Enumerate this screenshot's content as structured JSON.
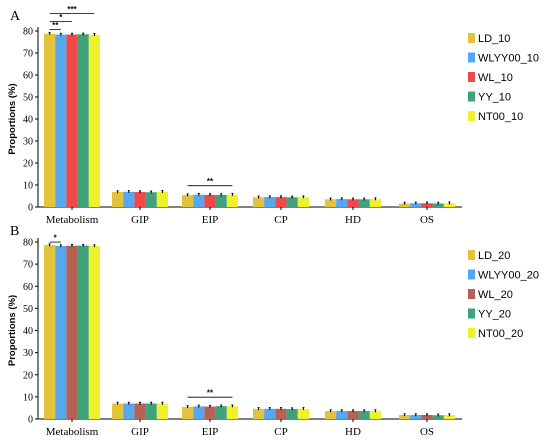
{
  "chart_data": [
    {
      "type": "bar",
      "panel": "A",
      "ylabel": "Proportions (%)",
      "ylim": [
        0,
        80
      ],
      "yticks": [
        0,
        10,
        20,
        30,
        40,
        50,
        60,
        70,
        80
      ],
      "categories": [
        "Metabolism",
        "GIP",
        "EIP",
        "CP",
        "HD",
        "OS"
      ],
      "legend_position": "right",
      "series": [
        {
          "name": "LD_10",
          "color": "#e3c23c",
          "values": [
            78.8,
            6.8,
            5.4,
            4.4,
            3.5,
            1.6
          ]
        },
        {
          "name": "WLYY00_10",
          "color": "#55a8f0",
          "values": [
            78.4,
            6.9,
            5.6,
            4.5,
            3.6,
            1.7
          ]
        },
        {
          "name": "WL_10",
          "color": "#f0474b",
          "values": [
            78.4,
            6.8,
            5.5,
            4.5,
            3.5,
            1.7
          ]
        },
        {
          "name": "YY_10",
          "color": "#3ea27c",
          "values": [
            78.5,
            6.7,
            5.5,
            4.4,
            3.5,
            1.6
          ]
        },
        {
          "name": "NT00_10",
          "color": "#eff22a",
          "values": [
            78.3,
            6.9,
            5.6,
            4.5,
            3.6,
            1.7
          ]
        }
      ],
      "significance": [
        {
          "label": "***",
          "category": "Metabolism",
          "from": 0,
          "to": 4
        },
        {
          "label": "*",
          "category": "Metabolism",
          "from": 0,
          "to": 2
        },
        {
          "label": "**",
          "category": "Metabolism",
          "from": 0,
          "to": 1
        },
        {
          "label": "**",
          "category": "EIP",
          "from": 0,
          "to": 4
        }
      ]
    },
    {
      "type": "bar",
      "panel": "B",
      "ylabel": "Proportions (%)",
      "ylim": [
        0,
        80
      ],
      "yticks": [
        0,
        10,
        20,
        30,
        40,
        50,
        60,
        70,
        80
      ],
      "categories": [
        "Metabolism",
        "GIP",
        "EIP",
        "CP",
        "HD",
        "OS"
      ],
      "legend_position": "right",
      "series": [
        {
          "name": "LD_20",
          "color": "#e3c23c",
          "values": [
            78.6,
            7.0,
            5.5,
            4.6,
            3.6,
            1.8
          ]
        },
        {
          "name": "WLYY00_20",
          "color": "#55a8f0",
          "values": [
            78.2,
            7.0,
            5.7,
            4.6,
            3.6,
            1.8
          ]
        },
        {
          "name": "WL_20",
          "color": "#b56153",
          "values": [
            78.3,
            7.0,
            5.6,
            4.6,
            3.6,
            1.8
          ]
        },
        {
          "name": "YY_20",
          "color": "#3ea27c",
          "values": [
            78.4,
            7.0,
            5.8,
            4.5,
            3.6,
            1.7
          ]
        },
        {
          "name": "NT00_20",
          "color": "#eff22a",
          "values": [
            78.2,
            7.0,
            5.8,
            4.6,
            3.6,
            1.8
          ]
        }
      ],
      "significance": [
        {
          "label": "*",
          "category": "Metabolism",
          "from": 0,
          "to": 1
        },
        {
          "label": "**",
          "category": "EIP",
          "from": 0,
          "to": 4
        }
      ]
    }
  ]
}
